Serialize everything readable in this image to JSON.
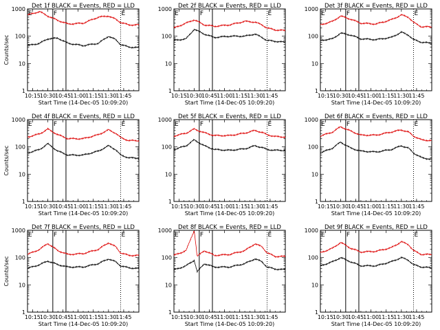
{
  "chart_data": [
    {
      "type": "line",
      "title": "Det 1f BLACK = Events, RED = LLD",
      "xlabel": "Start Time (14-Dec-05 10:09:20)",
      "ylabel": "Counts/sec",
      "yscale": "log",
      "ylim": [
        1,
        1000
      ],
      "xticks": [
        "10:15",
        "10:30",
        "10:45",
        "11:00",
        "11:15",
        "11:30",
        "11:45"
      ],
      "yticks": [
        "1",
        "10",
        "100",
        "1000"
      ],
      "markers": [
        {
          "label": "E",
          "minute": 0,
          "style": "solid"
        },
        {
          "label": "F",
          "minute": 25,
          "style": "solid"
        },
        {
          "label": "",
          "minute": 38,
          "style": "solid"
        },
        {
          "label": "E",
          "minute": 92,
          "style": "dotted"
        }
      ],
      "series": [
        {
          "color": "#000000",
          "x_minutes": [
            0,
            12,
            20,
            30,
            40,
            55,
            70,
            80,
            87,
            92,
            100,
            110
          ],
          "values": [
            45,
            55,
            80,
            85,
            55,
            45,
            55,
            100,
            75,
            50,
            40,
            38
          ]
        },
        {
          "color": "#dd0000",
          "x_minutes": [
            0,
            12,
            20,
            30,
            40,
            55,
            70,
            80,
            87,
            92,
            100,
            110
          ],
          "values": [
            600,
            800,
            550,
            380,
            280,
            300,
            500,
            550,
            420,
            320,
            260,
            260
          ]
        }
      ]
    },
    {
      "type": "line",
      "title": "Det 2f BLACK = Events, RED = LLD",
      "xlabel": "Start Time (14-Dec-05 10:09:20)",
      "ylabel": "",
      "yscale": "log",
      "ylim": [
        1,
        1000
      ],
      "xticks": [
        "10:15",
        "10:30",
        "10:45",
        "11:00",
        "11:15",
        "11:30",
        "11:45"
      ],
      "yticks": [
        "1",
        "10",
        "100",
        "1000"
      ],
      "markers": [
        {
          "label": "E",
          "minute": 0,
          "style": "solid"
        },
        {
          "label": "F",
          "minute": 25,
          "style": "solid"
        },
        {
          "label": "",
          "minute": 38,
          "style": "solid"
        },
        {
          "label": "E",
          "minute": 92,
          "style": "dotted"
        }
      ],
      "series": [
        {
          "color": "#000000",
          "x_minutes": [
            0,
            12,
            20,
            30,
            40,
            55,
            70,
            80,
            87,
            92,
            100,
            110
          ],
          "values": [
            70,
            80,
            180,
            120,
            90,
            100,
            100,
            120,
            90,
            70,
            65,
            60
          ]
        },
        {
          "color": "#dd0000",
          "x_minutes": [
            0,
            12,
            20,
            30,
            40,
            55,
            70,
            80,
            87,
            92,
            100,
            110
          ],
          "values": [
            200,
            300,
            400,
            260,
            230,
            260,
            350,
            330,
            260,
            200,
            170,
            160
          ]
        }
      ]
    },
    {
      "type": "line",
      "title": "Det 3f BLACK = Events, RED = LLD",
      "xlabel": "Start Time (14-Dec-05 10:09:20)",
      "ylabel": "",
      "yscale": "log",
      "ylim": [
        1,
        1000
      ],
      "xticks": [
        "10:15",
        "10:30",
        "10:45",
        "11:00",
        "11:15",
        "11:30",
        "11:45"
      ],
      "yticks": [
        "1",
        "10",
        "100",
        "1000"
      ],
      "markers": [
        {
          "label": "E",
          "minute": 0,
          "style": "solid"
        },
        {
          "label": "F",
          "minute": 25,
          "style": "solid"
        },
        {
          "label": "",
          "minute": 38,
          "style": "solid"
        },
        {
          "label": "E",
          "minute": 92,
          "style": "dotted"
        }
      ],
      "series": [
        {
          "color": "#000000",
          "x_minutes": [
            0,
            12,
            20,
            30,
            40,
            55,
            70,
            80,
            87,
            92,
            100,
            110
          ],
          "values": [
            70,
            80,
            130,
            110,
            80,
            75,
            90,
            140,
            110,
            75,
            60,
            55
          ]
        },
        {
          "color": "#dd0000",
          "x_minutes": [
            0,
            12,
            20,
            30,
            40,
            55,
            70,
            80,
            87,
            92,
            100,
            110
          ],
          "values": [
            260,
            350,
            550,
            420,
            300,
            280,
            400,
            600,
            500,
            320,
            220,
            220
          ]
        }
      ]
    },
    {
      "type": "line",
      "title": "Det 4f BLACK = Events, RED = LLD",
      "xlabel": "Start Time (14-Dec-05 10:09:20)",
      "ylabel": "Counts/sec",
      "yscale": "log",
      "ylim": [
        1,
        1000
      ],
      "xticks": [
        "10:15",
        "10:30",
        "10:45",
        "11:00",
        "11:15",
        "11:30",
        "11:45"
      ],
      "yticks": [
        "1",
        "10",
        "100",
        "1000"
      ],
      "markers": [
        {
          "label": "E",
          "minute": 0,
          "style": "solid"
        },
        {
          "label": "F",
          "minute": 25,
          "style": "solid"
        },
        {
          "label": "",
          "minute": 38,
          "style": "solid"
        },
        {
          "label": "E",
          "minute": 92,
          "style": "dotted"
        }
      ],
      "series": [
        {
          "color": "#000000",
          "x_minutes": [
            0,
            12,
            20,
            30,
            40,
            55,
            70,
            80,
            87,
            92,
            100,
            110
          ],
          "values": [
            60,
            80,
            130,
            70,
            50,
            50,
            70,
            110,
            80,
            50,
            40,
            38
          ]
        },
        {
          "color": "#dd0000",
          "x_minutes": [
            0,
            12,
            20,
            30,
            40,
            55,
            70,
            80,
            87,
            92,
            100,
            110
          ],
          "values": [
            230,
            300,
            450,
            280,
            200,
            200,
            280,
            420,
            320,
            220,
            170,
            170
          ]
        }
      ]
    },
    {
      "type": "line",
      "title": "Det 5f BLACK = Events, RED = LLD",
      "xlabel": "Start Time (14-Dec-05 10:09:20)",
      "ylabel": "",
      "yscale": "log",
      "ylim": [
        1,
        1000
      ],
      "xticks": [
        "10:15",
        "10:30",
        "10:45",
        "11:00",
        "11:15",
        "11:30",
        "11:45"
      ],
      "yticks": [
        "1",
        "10",
        "100",
        "1000"
      ],
      "markers": [
        {
          "label": "E",
          "minute": 0,
          "style": "solid"
        },
        {
          "label": "F",
          "minute": 25,
          "style": "solid"
        },
        {
          "label": "",
          "minute": 38,
          "style": "solid"
        },
        {
          "label": "E",
          "minute": 92,
          "style": "dotted"
        }
      ],
      "series": [
        {
          "color": "#000000",
          "x_minutes": [
            0,
            12,
            20,
            30,
            40,
            55,
            70,
            80,
            87,
            92,
            100,
            110
          ],
          "values": [
            80,
            110,
            180,
            110,
            80,
            75,
            85,
            110,
            95,
            80,
            75,
            75
          ]
        },
        {
          "color": "#dd0000",
          "x_minutes": [
            0,
            12,
            20,
            30,
            40,
            55,
            70,
            80,
            87,
            92,
            100,
            110
          ],
          "values": [
            250,
            320,
            450,
            330,
            260,
            260,
            320,
            400,
            340,
            280,
            240,
            230
          ]
        }
      ]
    },
    {
      "type": "line",
      "title": "Det 6f BLACK = Events, RED = LLD",
      "xlabel": "Start Time (14-Dec-05 10:09:20)",
      "ylabel": "",
      "yscale": "log",
      "ylim": [
        1,
        1000
      ],
      "xticks": [
        "10:15",
        "10:30",
        "10:45",
        "11:00",
        "11:15",
        "11:30",
        "11:45"
      ],
      "yticks": [
        "1",
        "10",
        "100",
        "1000"
      ],
      "markers": [
        {
          "label": "E",
          "minute": 0,
          "style": "solid"
        },
        {
          "label": "F",
          "minute": 25,
          "style": "solid"
        },
        {
          "label": "",
          "minute": 38,
          "style": "solid"
        },
        {
          "label": "E",
          "minute": 92,
          "style": "dotted"
        }
      ],
      "series": [
        {
          "color": "#000000",
          "x_minutes": [
            0,
            12,
            20,
            30,
            40,
            55,
            70,
            80,
            87,
            92,
            100,
            110
          ],
          "values": [
            60,
            90,
            150,
            90,
            70,
            65,
            80,
            110,
            90,
            60,
            40,
            35
          ]
        },
        {
          "color": "#dd0000",
          "x_minutes": [
            0,
            12,
            20,
            30,
            40,
            55,
            70,
            80,
            87,
            92,
            100,
            110
          ],
          "values": [
            250,
            350,
            550,
            380,
            270,
            270,
            350,
            420,
            350,
            250,
            180,
            170
          ]
        }
      ]
    },
    {
      "type": "line",
      "title": "Det 7f BLACK = Events, RED = LLD",
      "xlabel": "Start Time (14-Dec-05 10:09:20)",
      "ylabel": "Counts/sec",
      "yscale": "log",
      "ylim": [
        1,
        1000
      ],
      "xticks": [
        "10:15",
        "10:30",
        "10:45",
        "11:00",
        "11:15",
        "11:30",
        "11:45"
      ],
      "yticks": [
        "1",
        "10",
        "100",
        "1000"
      ],
      "markers": [
        {
          "label": "E",
          "minute": 0,
          "style": "solid"
        },
        {
          "label": "F",
          "minute": 25,
          "style": "solid"
        },
        {
          "label": "",
          "minute": 38,
          "style": "solid"
        },
        {
          "label": "E",
          "minute": 92,
          "style": "dotted"
        }
      ],
      "series": [
        {
          "color": "#000000",
          "x_minutes": [
            0,
            12,
            20,
            30,
            40,
            55,
            70,
            80,
            87,
            92,
            100,
            110
          ],
          "values": [
            40,
            55,
            75,
            55,
            45,
            45,
            60,
            90,
            70,
            50,
            42,
            40
          ]
        },
        {
          "color": "#dd0000",
          "x_minutes": [
            0,
            12,
            20,
            30,
            40,
            55,
            70,
            80,
            87,
            92,
            100,
            110
          ],
          "values": [
            130,
            200,
            330,
            180,
            130,
            140,
            200,
            350,
            250,
            150,
            120,
            120
          ]
        }
      ]
    },
    {
      "type": "line",
      "title": "Det 8f BLACK = Events, RED = LLD",
      "xlabel": "Start Time (14-Dec-05 10:09:20)",
      "ylabel": "",
      "yscale": "log",
      "ylim": [
        1,
        1000
      ],
      "xticks": [
        "10:15",
        "10:30",
        "10:45",
        "11:00",
        "11:15",
        "11:30",
        "11:45"
      ],
      "yticks": [
        "1",
        "10",
        "100",
        "1000"
      ],
      "markers": [
        {
          "label": "E",
          "minute": 0,
          "style": "solid"
        },
        {
          "label": "F",
          "minute": 25,
          "style": "solid"
        },
        {
          "label": "",
          "minute": 38,
          "style": "solid"
        },
        {
          "label": "E",
          "minute": 92,
          "style": "dotted"
        }
      ],
      "series": [
        {
          "color": "#000000",
          "x_minutes": [
            0,
            12,
            20,
            23,
            30,
            40,
            55,
            70,
            80,
            87,
            92,
            100,
            110
          ],
          "values": [
            35,
            50,
            80,
            30,
            60,
            45,
            45,
            60,
            90,
            70,
            45,
            38,
            36
          ]
        },
        {
          "color": "#dd0000",
          "x_minutes": [
            0,
            12,
            20,
            23,
            30,
            40,
            55,
            70,
            80,
            87,
            92,
            100,
            110
          ],
          "values": [
            120,
            180,
            1000,
            110,
            180,
            120,
            130,
            180,
            320,
            250,
            150,
            110,
            110
          ]
        }
      ]
    },
    {
      "type": "line",
      "title": "Det 9f BLACK = Events, RED = LLD",
      "xlabel": "Start Time (14-Dec-05 10:09:20)",
      "ylabel": "",
      "yscale": "log",
      "ylim": [
        1,
        1000
      ],
      "xticks": [
        "10:15",
        "10:30",
        "10:45",
        "11:00",
        "11:15",
        "11:30",
        "11:45"
      ],
      "yticks": [
        "1",
        "10",
        "100",
        "1000"
      ],
      "markers": [
        {
          "label": "E",
          "minute": 0,
          "style": "solid"
        },
        {
          "label": "F",
          "minute": 25,
          "style": "solid"
        },
        {
          "label": "",
          "minute": 38,
          "style": "solid"
        },
        {
          "label": "E",
          "minute": 92,
          "style": "dotted"
        }
      ],
      "series": [
        {
          "color": "#000000",
          "x_minutes": [
            0,
            12,
            20,
            30,
            40,
            55,
            70,
            80,
            87,
            92,
            100,
            110
          ],
          "values": [
            50,
            70,
            100,
            70,
            50,
            50,
            70,
            100,
            80,
            55,
            45,
            42
          ]
        },
        {
          "color": "#dd0000",
          "x_minutes": [
            0,
            12,
            20,
            30,
            40,
            55,
            70,
            80,
            87,
            92,
            100,
            110
          ],
          "values": [
            150,
            220,
            360,
            220,
            160,
            170,
            230,
            380,
            300,
            180,
            130,
            130
          ]
        }
      ]
    }
  ]
}
